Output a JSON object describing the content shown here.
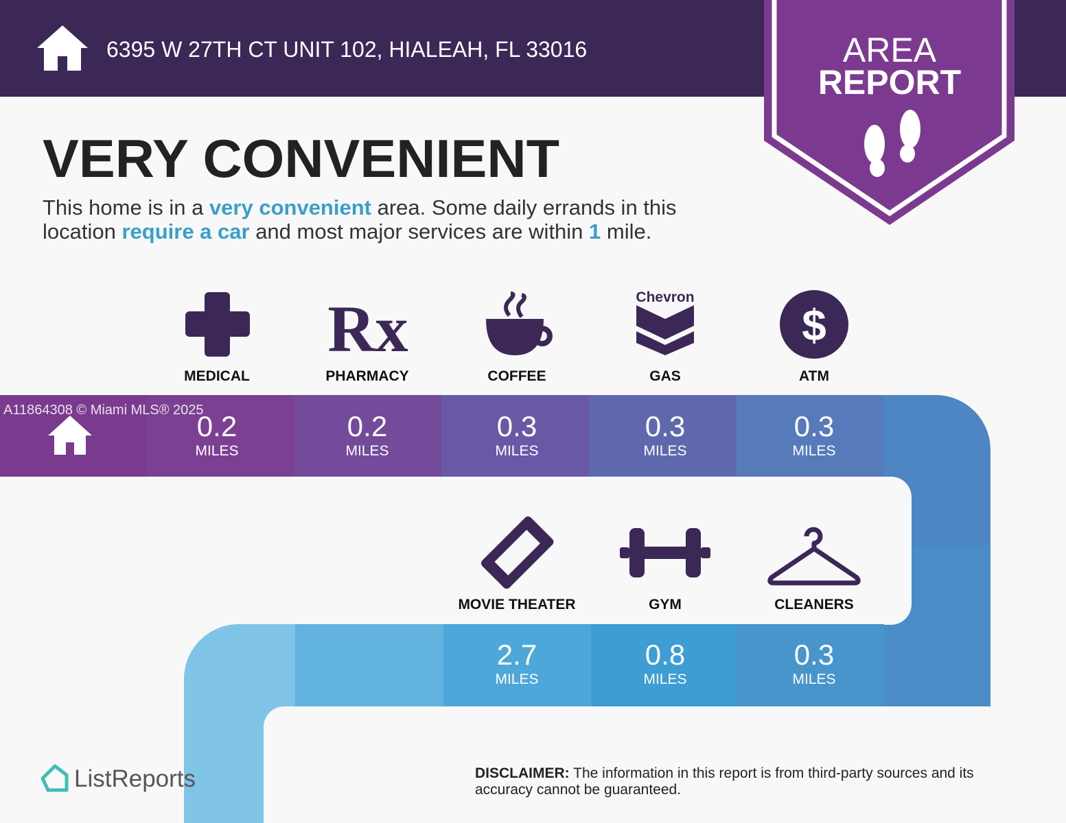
{
  "header": {
    "address": "6395 W 27TH CT UNIT 102, HIALEAH, FL 33016",
    "badge": [
      "AREA",
      "REPORT"
    ]
  },
  "rating": "VERY CONVENIENT",
  "summary": [
    "This home is in a ",
    "very convenient",
    " area. Some daily errands in this",
    "location ",
    "require a car",
    " and most major services are within ",
    1,
    " mile."
  ],
  "watermark": "A11864308 © Miami MLS® 2025",
  "unit": "MILES",
  "amenities": [
    {
      "label": "MEDICAL",
      "distance": 0.2
    },
    {
      "label": "PHARMACY",
      "distance": 0.2,
      "symbol": "Rx"
    },
    {
      "label": "COFFEE",
      "distance": 0.3
    },
    {
      "label": "GAS",
      "distance": 0.3,
      "brand": "Chevron"
    },
    {
      "label": "ATM",
      "distance": 0.3,
      "symbol": "$"
    },
    {
      "label": "MOVIE THEATER",
      "distance": 2.7
    },
    {
      "label": "GYM",
      "distance": 0.8
    },
    {
      "label": "CLEANERS",
      "distance": 0.3
    }
  ],
  "footer": {
    "logo": "ListReports",
    "disclaimer_label": "DISCLAIMER:",
    "disclaimer": [
      " The information in this report is from third-party sources and its",
      "accuracy cannot be guaranteed."
    ]
  }
}
